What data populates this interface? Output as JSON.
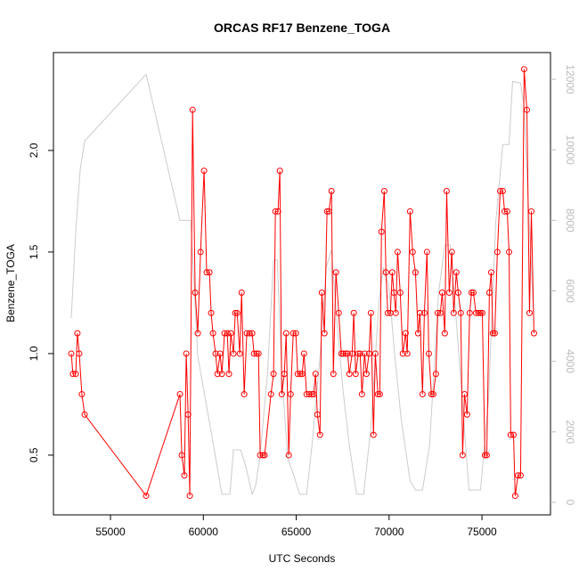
{
  "chart_data": {
    "type": "line",
    "title": "ORCAS RF17 Benzene_TOGA",
    "xlabel": "UTC Seconds",
    "ylabel": "Benzene_TOGA",
    "xlim": [
      51930,
      78690
    ],
    "ylim": [
      0.206,
      2.482
    ],
    "y2lim": [
      -354,
      12758
    ],
    "xticks": [
      55000,
      60000,
      65000,
      70000,
      75000
    ],
    "yticks": [
      0.5,
      {
        "value": 1.0,
        "label": "1.0"
      },
      1.5,
      {
        "value": 2.0,
        "label": "2.0"
      }
    ],
    "y2ticks": [
      0,
      2000,
      4000,
      6000,
      8000,
      10000,
      12000
    ],
    "y2_axis_color": "#bbbbbb",
    "series": [
      {
        "color": "#ff0000",
        "markers": true,
        "x": [
          52890,
          52980,
          53130,
          53220,
          53320,
          53460,
          53610,
          56920,
          58740,
          58840,
          58980,
          59080,
          59180,
          59270,
          59420,
          59560,
          59700,
          59850,
          60040,
          60180,
          60330,
          60420,
          60520,
          60660,
          60760,
          60900,
          61000,
          61140,
          61290,
          61380,
          61480,
          61620,
          61720,
          61820,
          61960,
          62060,
          62200,
          62340,
          62490,
          62630,
          62730,
          62870,
          62970,
          63060,
          63210,
          63300,
          63640,
          63780,
          63880,
          64020,
          64120,
          64220,
          64360,
          64460,
          64600,
          64700,
          64840,
          64980,
          65080,
          65220,
          65320,
          65420,
          65560,
          65700,
          65850,
          65940,
          66040,
          66140,
          66280,
          66380,
          66520,
          66660,
          66760,
          66900,
          67000,
          67140,
          67290,
          67430,
          67530,
          67670,
          67770,
          67860,
          68010,
          68100,
          68200,
          68340,
          68440,
          68540,
          68680,
          68780,
          68920,
          69020,
          69160,
          69260,
          69400,
          69500,
          69590,
          69740,
          69830,
          69930,
          70070,
          70170,
          70260,
          70360,
          70460,
          70600,
          70740,
          70890,
          70980,
          71130,
          71270,
          71420,
          71560,
          71660,
          71800,
          71900,
          72040,
          72140,
          72280,
          72380,
          72520,
          72620,
          72760,
          72860,
          73000,
          73100,
          73240,
          73380,
          73480,
          73620,
          73720,
          73860,
          73960,
          74060,
          74200,
          74340,
          74440,
          74540,
          74680,
          74820,
          74920,
          75020,
          75160,
          75260,
          75400,
          75500,
          75590,
          75690,
          75830,
          75980,
          76120,
          76220,
          76360,
          76460,
          76550,
          76700,
          76790,
          76940,
          77080,
          77270,
          77420,
          77560,
          77660,
          77800
        ],
        "values": [
          1.0,
          0.9,
          0.9,
          1.1,
          1.0,
          0.8,
          0.7,
          0.3,
          0.8,
          0.5,
          0.4,
          1.0,
          0.7,
          0.3,
          2.2,
          1.3,
          1.1,
          1.5,
          1.9,
          1.4,
          1.4,
          1.2,
          1.1,
          1.0,
          0.9,
          1.0,
          0.9,
          1.1,
          1.1,
          0.9,
          1.1,
          1.0,
          1.2,
          1.2,
          1.0,
          1.3,
          0.8,
          1.1,
          1.1,
          1.1,
          1.0,
          1.0,
          1.0,
          0.5,
          0.5,
          0.5,
          0.8,
          0.9,
          1.7,
          1.7,
          1.9,
          0.8,
          0.9,
          1.1,
          0.5,
          0.8,
          1.1,
          1.1,
          0.9,
          0.9,
          0.9,
          1.0,
          0.8,
          0.8,
          0.8,
          0.8,
          0.9,
          0.7,
          0.6,
          1.3,
          1.1,
          1.7,
          1.7,
          1.8,
          0.9,
          1.4,
          1.2,
          1.0,
          1.0,
          1.0,
          1.0,
          0.9,
          1.0,
          1.2,
          0.9,
          1.0,
          1.0,
          0.8,
          1.0,
          0.9,
          1.0,
          1.2,
          0.6,
          1.0,
          0.8,
          0.8,
          1.6,
          1.8,
          1.4,
          1.2,
          1.2,
          1.4,
          1.3,
          1.2,
          1.5,
          1.3,
          1.0,
          1.1,
          1.0,
          1.7,
          1.5,
          1.4,
          1.1,
          1.2,
          0.8,
          1.2,
          1.5,
          1.0,
          0.8,
          0.8,
          0.9,
          1.2,
          1.2,
          1.3,
          1.1,
          1.8,
          1.3,
          1.5,
          1.2,
          1.4,
          1.3,
          1.2,
          0.5,
          0.8,
          0.7,
          1.2,
          1.3,
          1.3,
          1.2,
          1.2,
          1.2,
          1.2,
          0.5,
          0.5,
          1.3,
          1.4,
          1.1,
          1.1,
          1.5,
          1.8,
          1.8,
          1.7,
          1.7,
          1.5,
          0.6,
          0.6,
          0.3,
          0.4,
          0.4,
          2.4,
          2.2,
          1.2,
          1.7,
          1.1
        ]
      },
      {
        "color": "#cccccc",
        "axis": "y2",
        "markers": false,
        "x": [
          52890,
          53130,
          53370,
          53610,
          56920,
          58740,
          59320,
          59700,
          60380,
          61000,
          61430,
          61620,
          62010,
          62300,
          62630,
          62820,
          63060,
          63450,
          63780,
          63980,
          64220,
          64550,
          64890,
          65180,
          65560,
          65850,
          66280,
          66620,
          66900,
          67190,
          67530,
          67860,
          68250,
          68630,
          69020,
          69450,
          69690,
          69980,
          70310,
          70650,
          71130,
          71420,
          71800,
          72180,
          72660,
          73000,
          73290,
          73580,
          73910,
          74300,
          74920,
          75350,
          75740,
          76120,
          76460,
          76650,
          77080,
          77270,
          77460,
          77660,
          77800
        ],
        "values": [
          5230,
          7680,
          9440,
          10250,
          12140,
          8000,
          8000,
          4140,
          2120,
          230,
          230,
          1490,
          1490,
          990,
          230,
          480,
          1360,
          3640,
          6870,
          6870,
          3640,
          1240,
          730,
          230,
          230,
          1620,
          4140,
          6670,
          7170,
          5150,
          3130,
          1620,
          230,
          230,
          2120,
          5660,
          6670,
          6160,
          4140,
          2370,
          610,
          350,
          350,
          1620,
          5910,
          7300,
          7300,
          5400,
          3130,
          350,
          350,
          2880,
          7930,
          10150,
          10150,
          11940,
          11890,
          11210,
          8940,
          6670,
          5020
        ]
      }
    ]
  }
}
